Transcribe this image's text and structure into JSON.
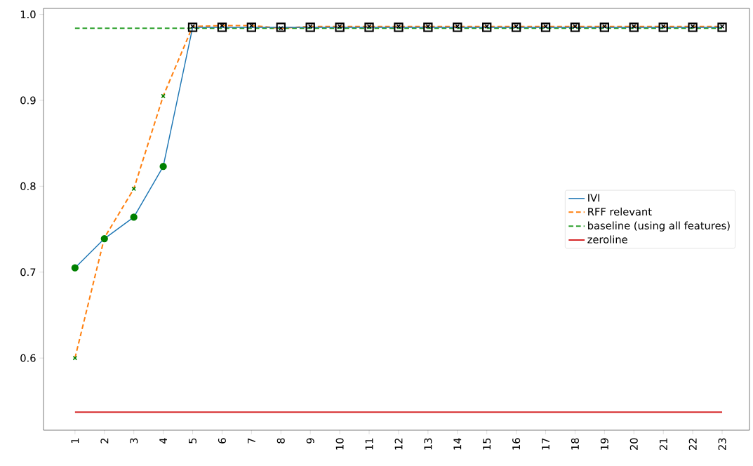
{
  "chart_data": {
    "type": "line",
    "categories": [
      "1",
      "2",
      "3",
      "4",
      "5",
      "6",
      "7",
      "8",
      "9",
      "10",
      "11",
      "12",
      "13",
      "14",
      "15",
      "16",
      "17",
      "18",
      "19",
      "20",
      "21",
      "22",
      "23"
    ],
    "ylim": [
      0.516,
      1.007
    ],
    "yticks": [
      0.6,
      0.7,
      0.8,
      0.9,
      {
        "value": 1.0,
        "label": "1.0"
      }
    ],
    "grid": false,
    "legend": "right",
    "series": [
      {
        "name": "IVI",
        "color": "#1f77b4",
        "line_style": "solid",
        "marker": "none",
        "values": [
          0.705,
          0.739,
          0.764,
          0.823,
          0.985,
          0.985,
          0.985,
          0.985,
          0.985,
          0.985,
          0.985,
          0.985,
          0.985,
          0.985,
          0.985,
          0.985,
          0.985,
          0.985,
          0.985,
          0.985,
          0.985,
          0.985,
          0.985
        ]
      },
      {
        "name": "RFF relevant",
        "color": "#ff7f0e",
        "line_style": "dashed",
        "marker": "none",
        "values": [
          0.6,
          0.74,
          0.797,
          0.905,
          0.986,
          0.987,
          0.987,
          0.984,
          0.986,
          0.986,
          0.986,
          0.986,
          0.986,
          0.986,
          0.986,
          0.986,
          0.986,
          0.986,
          0.986,
          0.986,
          0.986,
          0.986,
          0.986
        ]
      },
      {
        "name": "baseline (using all features)",
        "color": "#2ca02c",
        "line_style": "dashed",
        "marker": "none",
        "values": [
          0.984,
          0.984,
          0.984,
          0.984,
          0.984,
          0.984,
          0.984,
          0.984,
          0.984,
          0.984,
          0.984,
          0.984,
          0.984,
          0.984,
          0.984,
          0.984,
          0.984,
          0.984,
          0.984,
          0.984,
          0.984,
          0.984,
          0.984
        ]
      },
      {
        "name": "zeroline",
        "color": "#d62728",
        "line_style": "solid",
        "marker": "none",
        "values": [
          0.537,
          0.537,
          0.537,
          0.537,
          0.537,
          0.537,
          0.537,
          0.537,
          0.537,
          0.537,
          0.537,
          0.537,
          0.537,
          0.537,
          0.537,
          0.537,
          0.537,
          0.537,
          0.537,
          0.537,
          0.537,
          0.537,
          0.537
        ]
      },
      {
        "type": "scatter",
        "color": "#008000",
        "marker": "circle",
        "values": [
          0.705,
          0.739,
          0.764,
          0.823,
          null,
          null,
          null,
          null,
          null,
          null,
          null,
          null,
          null,
          null,
          null,
          null,
          null,
          null,
          null,
          null,
          null,
          null,
          null
        ]
      },
      {
        "type": "scatter",
        "color": "#008000",
        "marker": "cross",
        "values": [
          0.6,
          0.74,
          0.797,
          0.905,
          null,
          null,
          null,
          null,
          null,
          null,
          null,
          null,
          null,
          null,
          null,
          null,
          null,
          null,
          null,
          null,
          null,
          null,
          null
        ]
      },
      {
        "type": "scatter",
        "color": "#000000",
        "marker": "square",
        "values": [
          null,
          null,
          null,
          null,
          0.985,
          0.985,
          0.985,
          0.985,
          0.985,
          0.985,
          0.985,
          0.985,
          0.985,
          0.985,
          0.985,
          0.985,
          0.985,
          0.985,
          0.985,
          0.985,
          0.985,
          0.985,
          0.985
        ]
      },
      {
        "type": "scatter",
        "color": "#000000",
        "marker": "cross",
        "values": [
          null,
          null,
          null,
          null,
          0.986,
          0.987,
          0.987,
          0.984,
          0.986,
          0.986,
          0.986,
          0.986,
          0.986,
          0.986,
          0.986,
          0.986,
          0.986,
          0.986,
          0.986,
          0.986,
          0.986,
          0.986,
          0.986
        ]
      }
    ]
  }
}
